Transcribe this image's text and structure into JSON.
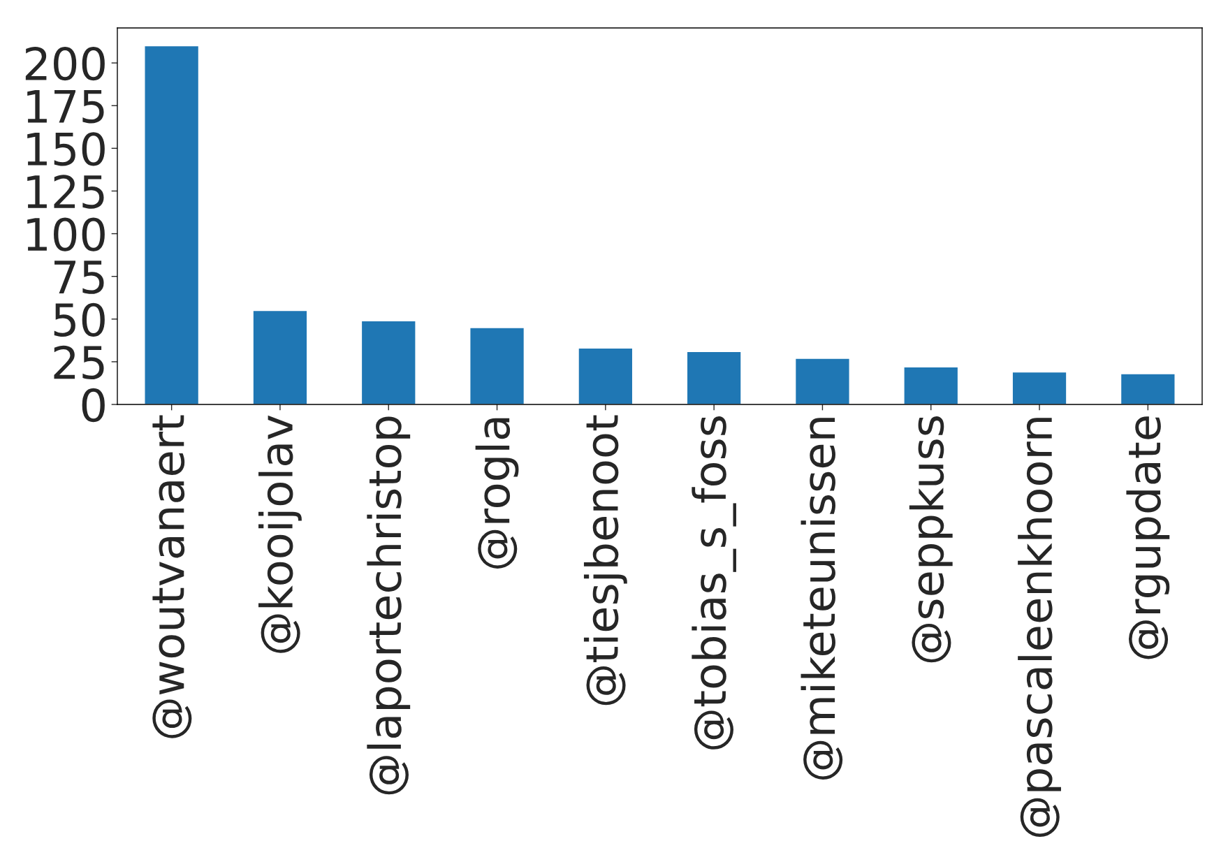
{
  "chart_data": {
    "type": "bar",
    "categories": [
      "@woutvanaert",
      "@kooijolav",
      "@laportechristop",
      "@rogla",
      "@tiesjbenoot",
      "@tobias_s_foss",
      "@miketeunissen",
      "@seppkuss",
      "@pascaleenkhoorn",
      "@rgupdate"
    ],
    "values": [
      210,
      55,
      49,
      45,
      33,
      31,
      27,
      22,
      19,
      18
    ],
    "color": "#1f77b4",
    "ylim": [
      0,
      220.5
    ],
    "yticks": [
      0,
      25,
      50,
      75,
      100,
      125,
      150,
      175,
      200
    ],
    "grid": false
  }
}
